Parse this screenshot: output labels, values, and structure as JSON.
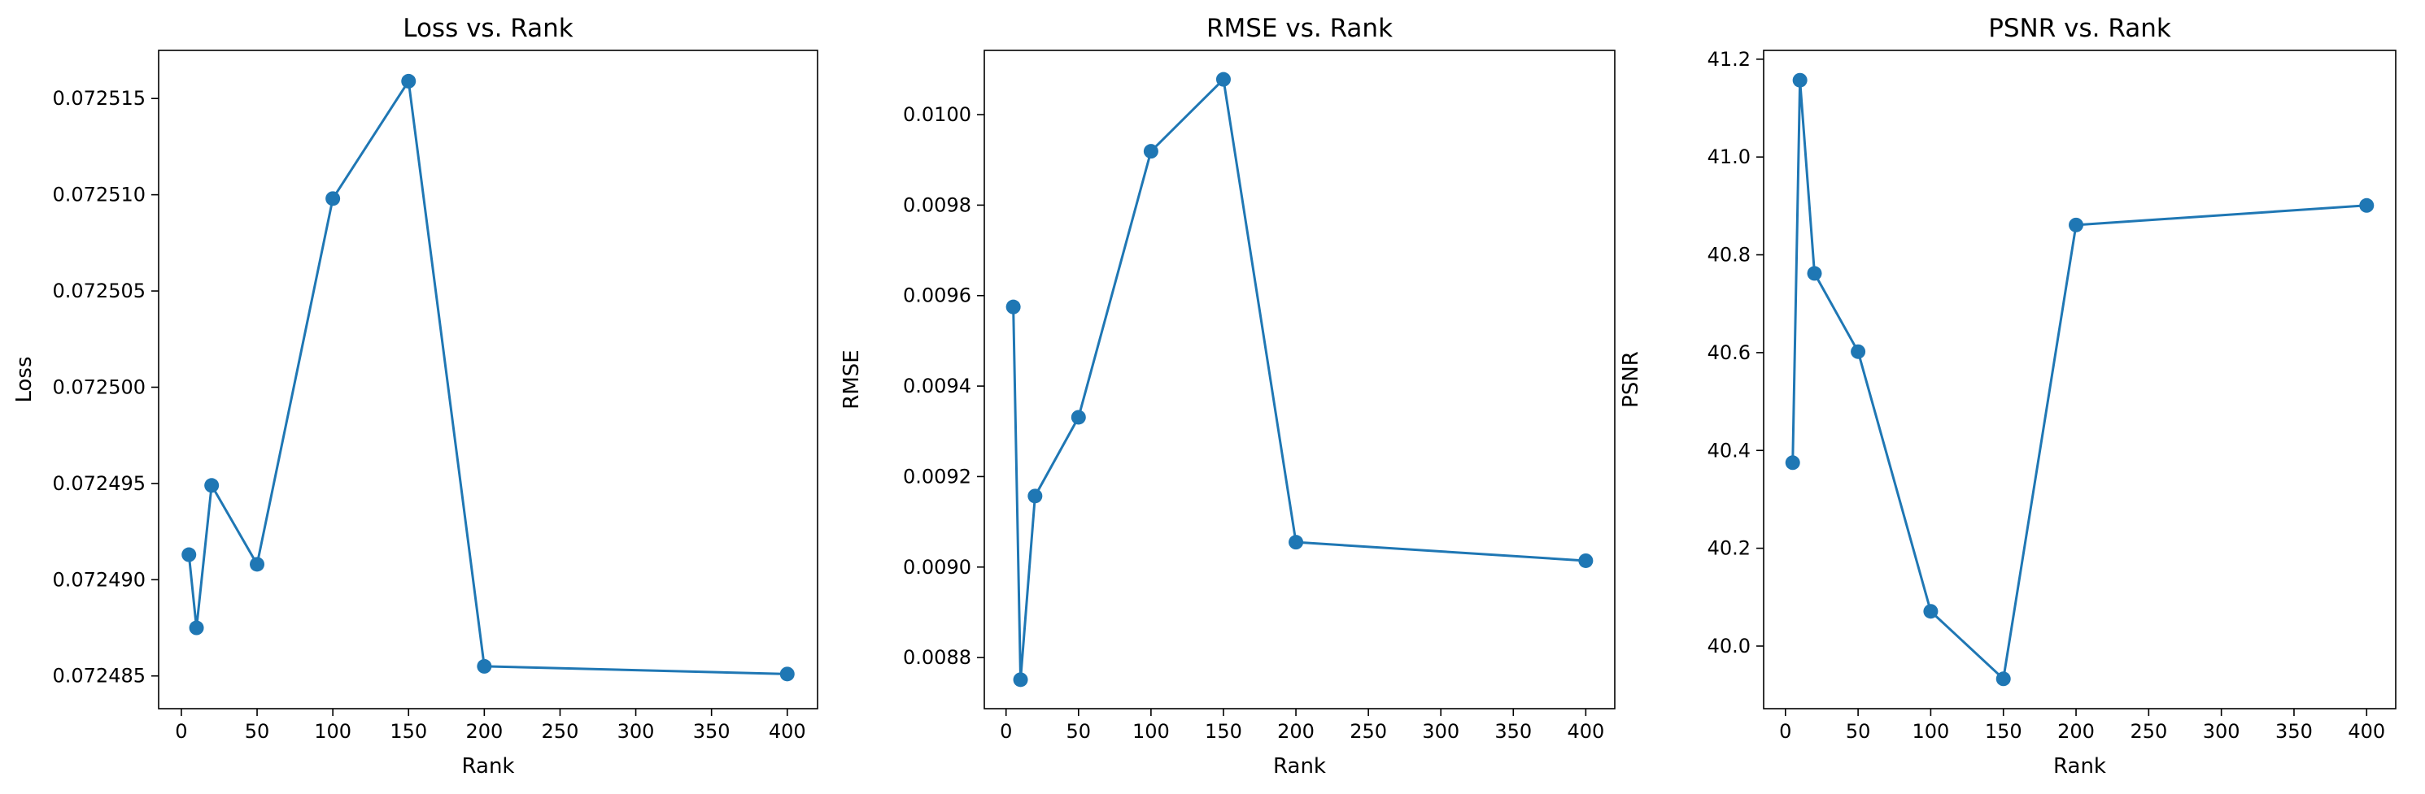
{
  "chart_data": [
    {
      "type": "line",
      "title": "Loss vs. Rank",
      "xlabel": "Rank",
      "ylabel": "Loss",
      "x": [
        5,
        10,
        20,
        50,
        100,
        150,
        200,
        400
      ],
      "values": [
        0.0724913,
        0.0724875,
        0.0724949,
        0.0724908,
        0.0725098,
        0.0725159,
        0.0724855,
        0.0724851
      ],
      "xlim": [
        -15,
        420
      ],
      "ylim": [
        0.0724833,
        0.0725175
      ],
      "xticks": [
        0,
        50,
        100,
        150,
        200,
        250,
        300,
        350,
        400
      ],
      "yticks": [
        0.072485,
        0.07249,
        0.072495,
        0.0725,
        0.072505,
        0.07251,
        0.072515
      ],
      "ytick_labels": [
        "0.072485",
        "0.072490",
        "0.072495",
        "0.072500",
        "0.072505",
        "0.072510",
        "0.072515"
      ],
      "color": "#1f77b4",
      "marker": "circle",
      "grid": false
    },
    {
      "type": "line",
      "title": "RMSE vs. Rank",
      "xlabel": "Rank",
      "ylabel": "RMSE",
      "x": [
        5,
        10,
        20,
        50,
        100,
        150,
        200,
        400
      ],
      "values": [
        0.009575,
        0.008751,
        0.009157,
        0.009331,
        0.009919,
        0.010078,
        0.009055,
        0.009014
      ],
      "xlim": [
        -15,
        420
      ],
      "ylim": [
        0.008687,
        0.010142
      ],
      "xticks": [
        0,
        50,
        100,
        150,
        200,
        250,
        300,
        350,
        400
      ],
      "yticks": [
        0.0088,
        0.009,
        0.0092,
        0.0094,
        0.0096,
        0.0098,
        0.01
      ],
      "ytick_labels": [
        "0.0088",
        "0.0090",
        "0.0092",
        "0.0094",
        "0.0096",
        "0.0098",
        "0.0100"
      ],
      "color": "#1f77b4",
      "marker": "circle",
      "grid": false
    },
    {
      "type": "line",
      "title": "PSNR vs. Rank",
      "xlabel": "Rank",
      "ylabel": "PSNR",
      "x": [
        5,
        10,
        20,
        50,
        100,
        150,
        200,
        400
      ],
      "values": [
        40.375,
        41.157,
        40.762,
        40.602,
        40.071,
        39.933,
        40.861,
        40.901
      ],
      "xlim": [
        -15,
        420
      ],
      "ylim": [
        39.872,
        41.218
      ],
      "xticks": [
        0,
        50,
        100,
        150,
        200,
        250,
        300,
        350,
        400
      ],
      "yticks": [
        40.0,
        40.2,
        40.4,
        40.6,
        40.8,
        41.0,
        41.2
      ],
      "ytick_labels": [
        "40.0",
        "40.2",
        "40.4",
        "40.6",
        "40.8",
        "41.0",
        "41.2"
      ],
      "color": "#1f77b4",
      "marker": "circle",
      "grid": false
    }
  ]
}
